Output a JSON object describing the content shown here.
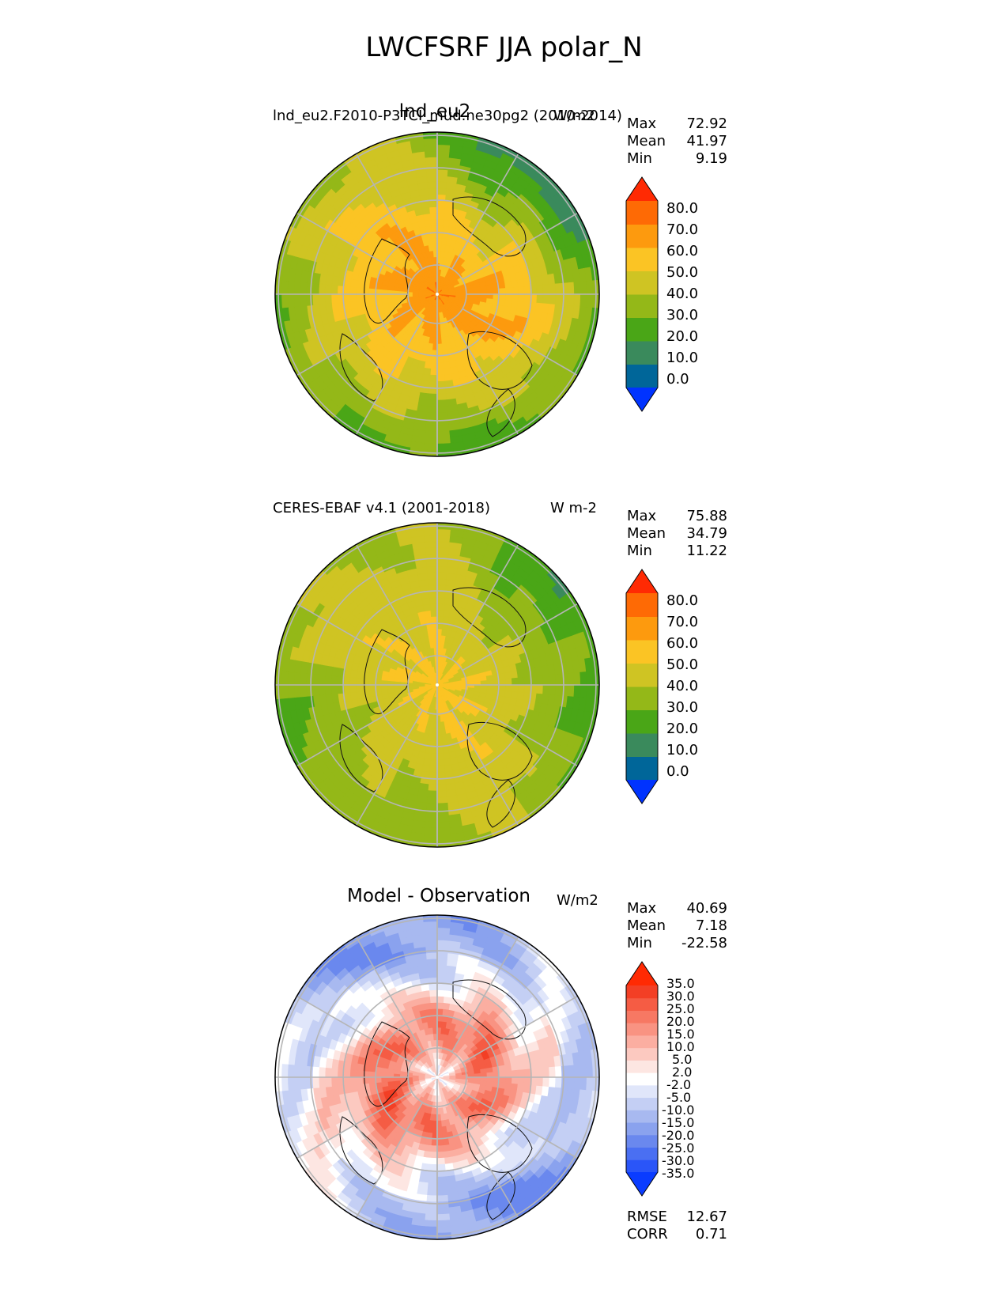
{
  "figure": {
    "title": "LWCFSRF JJA polar_N"
  },
  "chart_data": [
    {
      "type": "heatmap",
      "projection": "north-polar-stereographic",
      "title": "lnd_eu2",
      "subtitle_left": "lnd_eu2.F2010-P3TCI_mud.ne30pg2 (2010-2014)",
      "units": "W/m2",
      "stats": {
        "max_label": "Max",
        "max": "72.92",
        "mean_label": "Mean",
        "mean": "41.97",
        "min_label": "Min",
        "min": "9.19"
      },
      "colorbar": {
        "levels": [
          "0.0",
          "10.0",
          "20.0",
          "30.0",
          "40.0",
          "50.0",
          "60.0",
          "70.0",
          "80.0"
        ],
        "colors": [
          "#0033ff",
          "#006699",
          "#3a8a5c",
          "#4aa617",
          "#94b818",
          "#cfc423",
          "#fbc424",
          "#fd9a0e",
          "#fe6a05",
          "#ff2a03"
        ]
      },
      "field_pattern": "model"
    },
    {
      "type": "heatmap",
      "projection": "north-polar-stereographic",
      "subtitle_left": "CERES-EBAF v4.1 (2001-2018)",
      "units": "W m-2",
      "stats": {
        "max_label": "Max",
        "max": "75.88",
        "mean_label": "Mean",
        "mean": "34.79",
        "min_label": "Min",
        "min": "11.22"
      },
      "colorbar": {
        "levels": [
          "0.0",
          "10.0",
          "20.0",
          "30.0",
          "40.0",
          "50.0",
          "60.0",
          "70.0",
          "80.0"
        ],
        "colors": [
          "#0033ff",
          "#006699",
          "#3a8a5c",
          "#4aa617",
          "#94b818",
          "#cfc423",
          "#fbc424",
          "#fd9a0e",
          "#fe6a05",
          "#ff2a03"
        ]
      },
      "field_pattern": "observation"
    },
    {
      "type": "heatmap",
      "projection": "north-polar-stereographic",
      "title": "Model - Observation",
      "units": "W/m2",
      "stats": {
        "max_label": "Max",
        "max": "40.69",
        "mean_label": "Mean",
        "mean": "7.18",
        "min_label": "Min",
        "min": "-22.58"
      },
      "metrics": {
        "rmse_label": "RMSE",
        "rmse": "12.67",
        "corr_label": "CORR",
        "corr": "0.71"
      },
      "colorbar": {
        "levels": [
          "-35.0",
          "-30.0",
          "-25.0",
          "-20.0",
          "-15.0",
          "-10.0",
          "-5.0",
          "-2.0",
          "2.0",
          "5.0",
          "10.0",
          "15.0",
          "20.0",
          "25.0",
          "30.0",
          "35.0"
        ],
        "colors": [
          "#0a3cff",
          "#2a55f8",
          "#4a6ff2",
          "#6a88ee",
          "#8aa2ee",
          "#a8b9f0",
          "#c4cff4",
          "#e0e6fa",
          "#ffffff",
          "#fde6e2",
          "#fcc9c0",
          "#fbaea1",
          "#f99382",
          "#f77863",
          "#f55c44",
          "#f33f25",
          "#ff2a03"
        ]
      },
      "field_pattern": "difference"
    }
  ]
}
